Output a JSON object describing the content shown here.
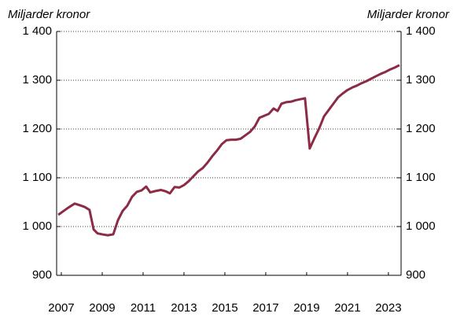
{
  "chart_data": {
    "type": "line",
    "y_label": "Miljarder kronor",
    "y2_label": "Miljarder kronor",
    "x": [
      2006.85,
      2007.08,
      2007.35,
      2007.65,
      2007.88,
      2008.15,
      2008.38,
      2008.58,
      2008.77,
      2009.0,
      2009.27,
      2009.54,
      2009.77,
      2010.0,
      2010.23,
      2010.46,
      2010.69,
      2010.92,
      2011.15,
      2011.35,
      2011.62,
      2011.88,
      2012.12,
      2012.31,
      2012.54,
      2012.77,
      2013.0,
      2013.23,
      2013.46,
      2013.69,
      2013.92,
      2014.15,
      2014.38,
      2014.62,
      2014.85,
      2015.08,
      2015.31,
      2015.54,
      2015.77,
      2016.0,
      2016.23,
      2016.46,
      2016.69,
      2016.92,
      2017.15,
      2017.38,
      2017.58,
      2017.77,
      2018.0,
      2018.23,
      2018.46,
      2018.69,
      2018.92,
      2019.15,
      2019.38,
      2019.62,
      2019.85,
      2020.08,
      2020.31,
      2020.54,
      2020.77,
      2021.0,
      2021.23,
      2021.46,
      2021.69,
      2021.92,
      2022.15,
      2022.38,
      2022.62,
      2022.85,
      2023.08,
      2023.31,
      2023.54
    ],
    "series": [
      {
        "color": "#8c2b45",
        "values": [
          1024,
          1031,
          1039,
          1047,
          1044,
          1040,
          1034,
          994,
          986,
          984,
          982,
          984,
          1013,
          1032,
          1043,
          1061,
          1071,
          1074,
          1082,
          1070,
          1073,
          1075,
          1072,
          1068,
          1081,
          1080,
          1085,
          1093,
          1103,
          1113,
          1120,
          1131,
          1144,
          1156,
          1169,
          1177,
          1178,
          1178,
          1180,
          1187,
          1194,
          1205,
          1223,
          1227,
          1231,
          1242,
          1237,
          1252,
          1255,
          1256,
          1259,
          1261,
          1263,
          1160,
          1181,
          1202,
          1226,
          1239,
          1252,
          1265,
          1273,
          1280,
          1285,
          1289,
          1294,
          1298,
          1303,
          1308,
          1313,
          1317,
          1322,
          1326,
          1331
        ]
      }
    ],
    "xlim": [
      2006.77,
      2023.62
    ],
    "xticks": [
      2007,
      2009,
      2011,
      2013,
      2015,
      2017,
      2019,
      2021,
      2023
    ],
    "ylim": [
      900,
      1400
    ],
    "yticks": [
      900,
      {
        "value": 1000,
        "label": "1 000"
      },
      {
        "value": 1100,
        "label": "1 100"
      },
      {
        "value": 1200,
        "label": "1 200"
      },
      {
        "value": 1300,
        "label": "1 300"
      },
      {
        "value": 1400,
        "label": "1 400"
      }
    ],
    "y2lim": [
      900,
      1400
    ],
    "y2ticks": [
      900,
      {
        "value": 1000,
        "label": "1 000"
      },
      {
        "value": 1100,
        "label": "1 100"
      },
      {
        "value": 1200,
        "label": "1 200"
      },
      {
        "value": 1300,
        "label": "1 300"
      },
      {
        "value": 1400,
        "label": "1 400"
      }
    ],
    "grid": true
  }
}
